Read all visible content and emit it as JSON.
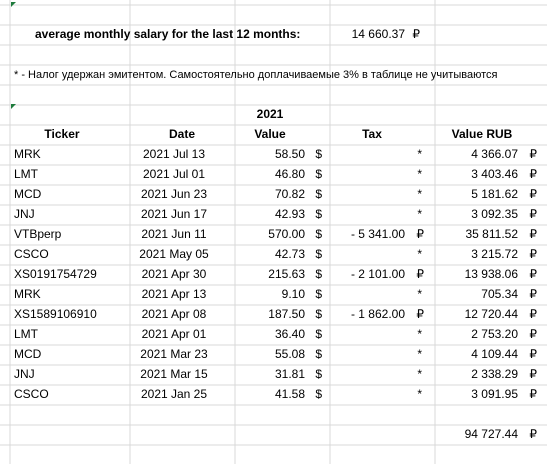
{
  "summary": {
    "label": "average monthly salary for the last 12 months:",
    "amount": "14 660.37",
    "currency": "₽"
  },
  "note": "* - Налог удержан эмитентом. Самостоятельно доплачиваемые 3% в таблице не учитываются",
  "table": {
    "year": "2021",
    "headers": [
      "Ticker",
      "Date",
      "Value",
      "Tax",
      "Value RUB"
    ],
    "rows": [
      {
        "ticker": "MRK",
        "date": "2021 Jul 13",
        "value": "58.50",
        "currency": "$",
        "tax": "*",
        "value_rub": "4 366.07",
        "rub_currency": "₽"
      },
      {
        "ticker": "LMT",
        "date": "2021 Jul 01",
        "value": "46.80",
        "currency": "$",
        "tax": "*",
        "value_rub": "3 403.46",
        "rub_currency": "₽"
      },
      {
        "ticker": "MCD",
        "date": "2021 Jun 23",
        "value": "70.82",
        "currency": "$",
        "tax": "*",
        "value_rub": "5 181.62",
        "rub_currency": "₽"
      },
      {
        "ticker": "JNJ",
        "date": "2021 Jun 17",
        "value": "42.93",
        "currency": "$",
        "tax": "*",
        "value_rub": "3 092.35",
        "rub_currency": "₽"
      },
      {
        "ticker": "VTBperp",
        "date": "2021 Jun 11",
        "value": "570.00",
        "currency": "$",
        "tax": "- 5 341.00",
        "tax_currency": "₽",
        "value_rub": "35 811.52",
        "rub_currency": "₽"
      },
      {
        "ticker": "CSCO",
        "date": "2021 May 05",
        "value": "42.73",
        "currency": "$",
        "tax": "*",
        "value_rub": "3 215.72",
        "rub_currency": "₽"
      },
      {
        "ticker": "XS0191754729",
        "date": "2021 Apr 30",
        "value": "215.63",
        "currency": "$",
        "tax": "- 2 101.00",
        "tax_currency": "₽",
        "value_rub": "13 938.06",
        "rub_currency": "₽"
      },
      {
        "ticker": "MRK",
        "date": "2021 Apr 13",
        "value": "9.10",
        "currency": "$",
        "tax": "*",
        "value_rub": "705.34",
        "rub_currency": "₽"
      },
      {
        "ticker": "XS1589106910",
        "date": "2021 Apr 08",
        "value": "187.50",
        "currency": "$",
        "tax": "- 1 862.00",
        "tax_currency": "₽",
        "value_rub": "12 720.44",
        "rub_currency": "₽"
      },
      {
        "ticker": "LMT",
        "date": "2021 Apr 01",
        "value": "36.40",
        "currency": "$",
        "tax": "*",
        "value_rub": "2 753.20",
        "rub_currency": "₽"
      },
      {
        "ticker": "MCD",
        "date": "2021 Mar 23",
        "value": "55.08",
        "currency": "$",
        "tax": "*",
        "value_rub": "4 109.44",
        "rub_currency": "₽"
      },
      {
        "ticker": "JNJ",
        "date": "2021 Mar 15",
        "value": "31.81",
        "currency": "$",
        "tax": "*",
        "value_rub": "2 338.29",
        "rub_currency": "₽"
      },
      {
        "ticker": "CSCO",
        "date": "2021 Jan 25",
        "value": "41.58",
        "currency": "$",
        "tax": "*",
        "value_rub": "3 091.95",
        "rub_currency": "₽"
      }
    ],
    "total": {
      "amount": "94 727.44",
      "currency": "₽"
    }
  }
}
